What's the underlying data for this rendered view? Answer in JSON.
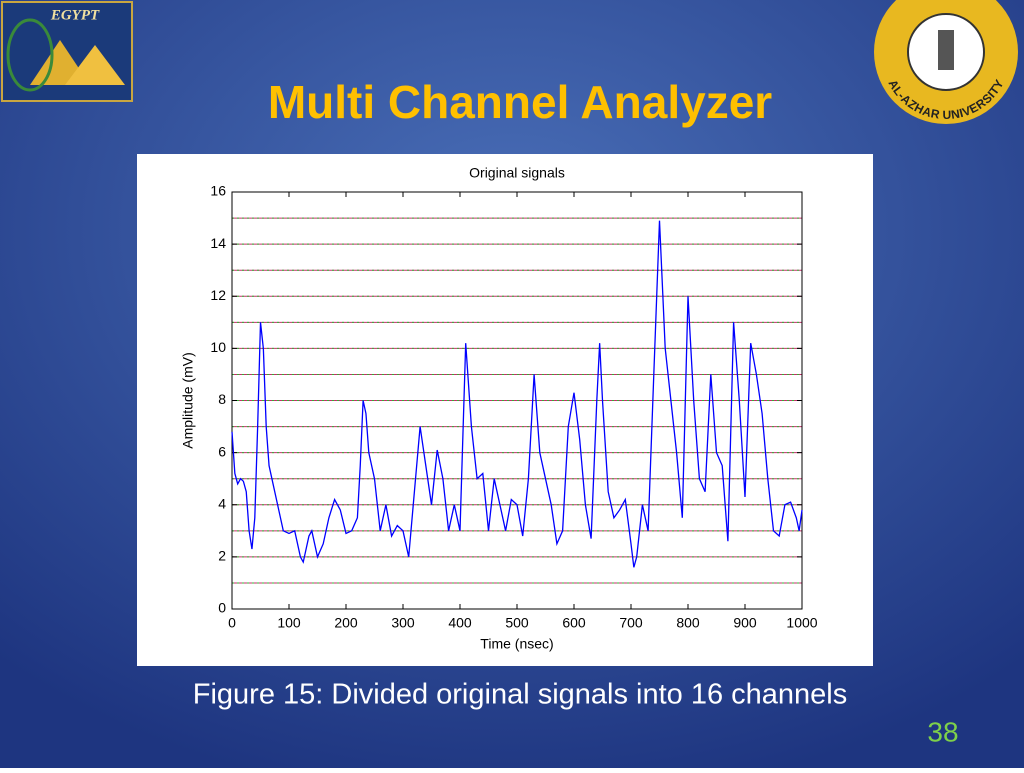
{
  "slide": {
    "title": "Multi Channel Analyzer",
    "caption": "Figure 15: Divided original signals into 16 channels",
    "page": "38",
    "logo_left": "EGYPT",
    "logo_right": "AL-AZHAR UNIVERSITY"
  },
  "chart_data": {
    "type": "line",
    "title": "Original signals",
    "x_label": "Time (nsec)",
    "y_label": "Amplitude (mV)",
    "xlim": [
      0,
      1000
    ],
    "ylim": [
      0,
      16
    ],
    "xticks": [
      0,
      100,
      200,
      300,
      400,
      500,
      600,
      700,
      800,
      900,
      1000
    ],
    "yticks": [
      0,
      2,
      4,
      6,
      8,
      10,
      12,
      14,
      16
    ],
    "channel_boundaries": [
      1,
      2,
      3,
      4,
      5,
      6,
      7,
      8,
      9,
      10,
      11,
      12,
      13,
      14,
      15
    ],
    "channel_color": "#c0306a",
    "channel_dash_color": "#30b030",
    "x": [
      0,
      5,
      10,
      15,
      20,
      25,
      30,
      35,
      40,
      45,
      50,
      55,
      60,
      65,
      70,
      80,
      90,
      100,
      110,
      120,
      125,
      135,
      140,
      150,
      160,
      170,
      180,
      190,
      200,
      210,
      220,
      225,
      230,
      235,
      240,
      250,
      260,
      270,
      280,
      290,
      300,
      310,
      320,
      330,
      340,
      350,
      360,
      370,
      380,
      390,
      400,
      410,
      420,
      430,
      440,
      450,
      460,
      470,
      480,
      490,
      500,
      510,
      520,
      530,
      540,
      550,
      560,
      570,
      580,
      590,
      600,
      610,
      620,
      630,
      640,
      645,
      650,
      660,
      670,
      680,
      690,
      700,
      705,
      710,
      720,
      730,
      740,
      750,
      760,
      770,
      780,
      790,
      800,
      810,
      820,
      830,
      840,
      850,
      860,
      870,
      880,
      890,
      900,
      910,
      920,
      930,
      940,
      950,
      960,
      970,
      980,
      990,
      995,
      1000
    ],
    "series": [
      {
        "name": "signal",
        "color": "#0000ff",
        "values": [
          6.8,
          5.2,
          4.8,
          5.0,
          4.9,
          4.5,
          3.0,
          2.3,
          3.5,
          7.0,
          11.0,
          10.0,
          7.0,
          5.5,
          5.0,
          4.0,
          3.0,
          2.9,
          3.0,
          2.0,
          1.8,
          2.8,
          3.0,
          2.0,
          2.5,
          3.5,
          4.2,
          3.8,
          2.9,
          3.0,
          3.5,
          5.5,
          8.0,
          7.5,
          6.0,
          5.0,
          3.0,
          4.0,
          2.8,
          3.2,
          3.0,
          2.0,
          4.5,
          7.0,
          5.5,
          4.0,
          6.1,
          5.0,
          3.0,
          4.0,
          3.0,
          10.2,
          7.0,
          5.0,
          5.2,
          3.0,
          5.0,
          4.0,
          3.0,
          4.2,
          4.0,
          2.8,
          5.0,
          9.0,
          6.0,
          5.0,
          4.0,
          2.5,
          3.0,
          7.0,
          8.3,
          6.5,
          4.0,
          2.7,
          8.0,
          10.2,
          8.0,
          4.5,
          3.5,
          3.8,
          4.2,
          2.5,
          1.6,
          2.0,
          4.0,
          3.0,
          9.0,
          14.9,
          10.0,
          8.0,
          6.0,
          3.5,
          12.0,
          8.0,
          5.0,
          4.5,
          9.0,
          6.0,
          5.5,
          2.6,
          11.0,
          8.0,
          4.3,
          10.2,
          9.0,
          7.5,
          5.0,
          3.0,
          2.8,
          4.0,
          4.1,
          3.5,
          3.0,
          3.8
        ]
      }
    ]
  }
}
